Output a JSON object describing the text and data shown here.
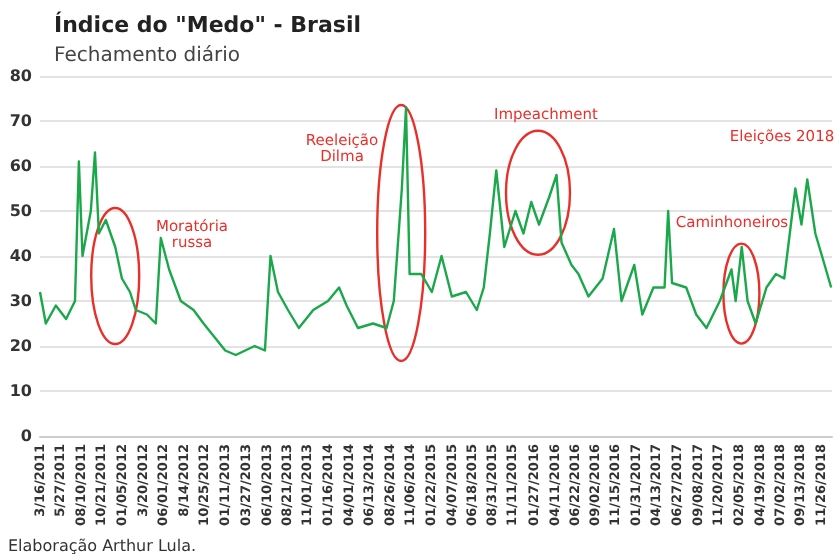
{
  "chart_data": {
    "type": "line",
    "title": "Índice do \"Medo\" - Brasil",
    "subtitle": "Fechamento diário",
    "x": [
      "2011-03-16",
      "2011-04-06",
      "2011-05-12",
      "2011-06-18",
      "2011-07-20",
      "2011-08-03",
      "2011-08-16",
      "2011-09-15",
      "2011-09-30",
      "2011-10-14",
      "2011-11-08",
      "2011-12-12",
      "2012-01-05",
      "2012-02-03",
      "2012-02-24",
      "2012-04-04",
      "2012-05-06",
      "2012-05-24",
      "2012-06-23",
      "2012-08-04",
      "2012-09-19",
      "2012-10-25",
      "2012-12-03",
      "2013-01-11",
      "2013-02-18",
      "2013-03-24",
      "2013-04-27",
      "2013-06-03",
      "2013-06-23",
      "2013-07-20",
      "2013-08-25",
      "2013-10-03",
      "2013-11-24",
      "2014-01-16",
      "2014-02-25",
      "2014-03-24",
      "2014-05-04",
      "2014-06-27",
      "2014-08-15",
      "2014-09-10",
      "2014-09-24",
      "2014-10-09",
      "2014-10-24",
      "2014-11-06",
      "2014-12-18",
      "2015-01-25",
      "2015-03-01",
      "2015-04-07",
      "2015-05-28",
      "2015-07-06",
      "2015-07-31",
      "2015-08-22",
      "2015-09-14",
      "2015-10-13",
      "2015-11-22",
      "2015-12-21",
      "2016-01-18",
      "2016-02-15",
      "2016-03-22",
      "2016-04-18",
      "2016-05-06",
      "2016-06-11",
      "2016-07-06",
      "2016-08-11",
      "2016-10-01",
      "2016-11-11",
      "2016-12-08",
      "2017-01-23",
      "2017-02-21",
      "2017-04-02",
      "2017-05-12",
      "2017-05-25",
      "2017-06-08",
      "2017-07-29",
      "2017-09-03",
      "2017-10-10",
      "2017-11-27",
      "2018-01-08",
      "2018-01-23",
      "2018-02-14",
      "2018-03-07",
      "2018-04-05",
      "2018-05-14",
      "2018-06-17",
      "2018-07-17",
      "2018-08-26",
      "2018-09-17",
      "2018-10-08",
      "2018-11-06",
      "2018-11-30",
      "2019-01-02"
    ],
    "series": [
      {
        "color": "#1aa84a",
        "values": [
          32,
          25,
          29,
          26,
          30,
          61,
          40,
          50,
          63,
          45,
          48,
          42,
          35,
          32,
          28,
          27,
          25,
          44,
          37,
          30,
          28,
          25,
          22,
          19,
          18,
          19,
          20,
          19,
          40,
          32,
          28,
          24,
          28,
          30,
          33,
          29,
          24,
          25,
          24,
          30,
          42,
          55,
          73,
          36,
          36,
          32,
          40,
          31,
          32,
          28,
          33,
          45,
          59,
          42,
          50,
          45,
          52,
          47,
          53,
          58,
          43,
          38,
          36,
          31,
          35,
          46,
          30,
          38,
          27,
          33,
          33,
          50,
          34,
          33,
          27,
          24,
          30,
          37,
          30,
          42,
          30,
          25,
          33,
          36,
          35,
          55,
          47,
          57,
          45,
          40,
          33
        ]
      }
    ],
    "xlim": [
      "2011-03-16",
      "2019-01-05"
    ],
    "xticks": [
      {
        "value": "2011-03-16",
        "label": "3/16/2011"
      },
      {
        "value": "2011-05-27",
        "label": "5/27/2011"
      },
      {
        "value": "2011-08-10",
        "label": "08/10/2011"
      },
      {
        "value": "2011-10-21",
        "label": "10/21/2011"
      },
      {
        "value": "2012-01-05",
        "label": "01/05/2012"
      },
      {
        "value": "2012-03-20",
        "label": "3/20/2012"
      },
      {
        "value": "2012-06-01",
        "label": "06/01/2012"
      },
      {
        "value": "2012-08-14",
        "label": "8/14/2012"
      },
      {
        "value": "2012-10-25",
        "label": "10/25/2012"
      },
      {
        "value": "2013-01-11",
        "label": "01/11/2013"
      },
      {
        "value": "2013-03-27",
        "label": "03/27/2013"
      },
      {
        "value": "2013-06-10",
        "label": "06/10/2013"
      },
      {
        "value": "2013-08-21",
        "label": "08/21/2013"
      },
      {
        "value": "2013-11-01",
        "label": "11/01/2013"
      },
      {
        "value": "2014-01-16",
        "label": "01/16/2014"
      },
      {
        "value": "2014-04-01",
        "label": "04/01/2014"
      },
      {
        "value": "2014-06-13",
        "label": "06/13/2014"
      },
      {
        "value": "2014-08-26",
        "label": "08/26/2014"
      },
      {
        "value": "2014-11-06",
        "label": "11/06/2014"
      },
      {
        "value": "2015-01-22",
        "label": "01/22/2015"
      },
      {
        "value": "2015-04-07",
        "label": "04/07/2015"
      },
      {
        "value": "2015-06-18",
        "label": "06/18/2015"
      },
      {
        "value": "2015-08-31",
        "label": "08/31/2015"
      },
      {
        "value": "2015-11-11",
        "label": "11/11/2015"
      },
      {
        "value": "2016-01-27",
        "label": "01/27/2016"
      },
      {
        "value": "2016-04-11",
        "label": "04/11/2016"
      },
      {
        "value": "2016-06-22",
        "label": "06/22/2016"
      },
      {
        "value": "2016-09-02",
        "label": "09/02/2016"
      },
      {
        "value": "2016-11-15",
        "label": "11/15/2016"
      },
      {
        "value": "2017-01-31",
        "label": "01/31/2017"
      },
      {
        "value": "2017-04-13",
        "label": "04/13/2017"
      },
      {
        "value": "2017-06-27",
        "label": "06/27/2017"
      },
      {
        "value": "2017-09-08",
        "label": "09/08/2017"
      },
      {
        "value": "2017-11-20",
        "label": "11/20/2017"
      },
      {
        "value": "2018-02-05",
        "label": "02/05/2018"
      },
      {
        "value": "2018-04-19",
        "label": "04/19/2018"
      },
      {
        "value": "2018-07-02",
        "label": "07/02/2018"
      },
      {
        "value": "2018-09-13",
        "label": "09/13/2018"
      },
      {
        "value": "2018-11-26",
        "label": "11/26/2018"
      }
    ],
    "ylim": [
      0,
      80
    ],
    "yticks": [
      0,
      10,
      20,
      30,
      40,
      50,
      60,
      70,
      80
    ],
    "grid": "y",
    "marker": "none",
    "line_style": "solid",
    "annotations": [
      "Moratória russa",
      "Reeleição Dilma",
      "Impeachment",
      "Caminhoneiros",
      "Eleições 2018",
      "Elaboração Arthur Lula."
    ]
  }
}
